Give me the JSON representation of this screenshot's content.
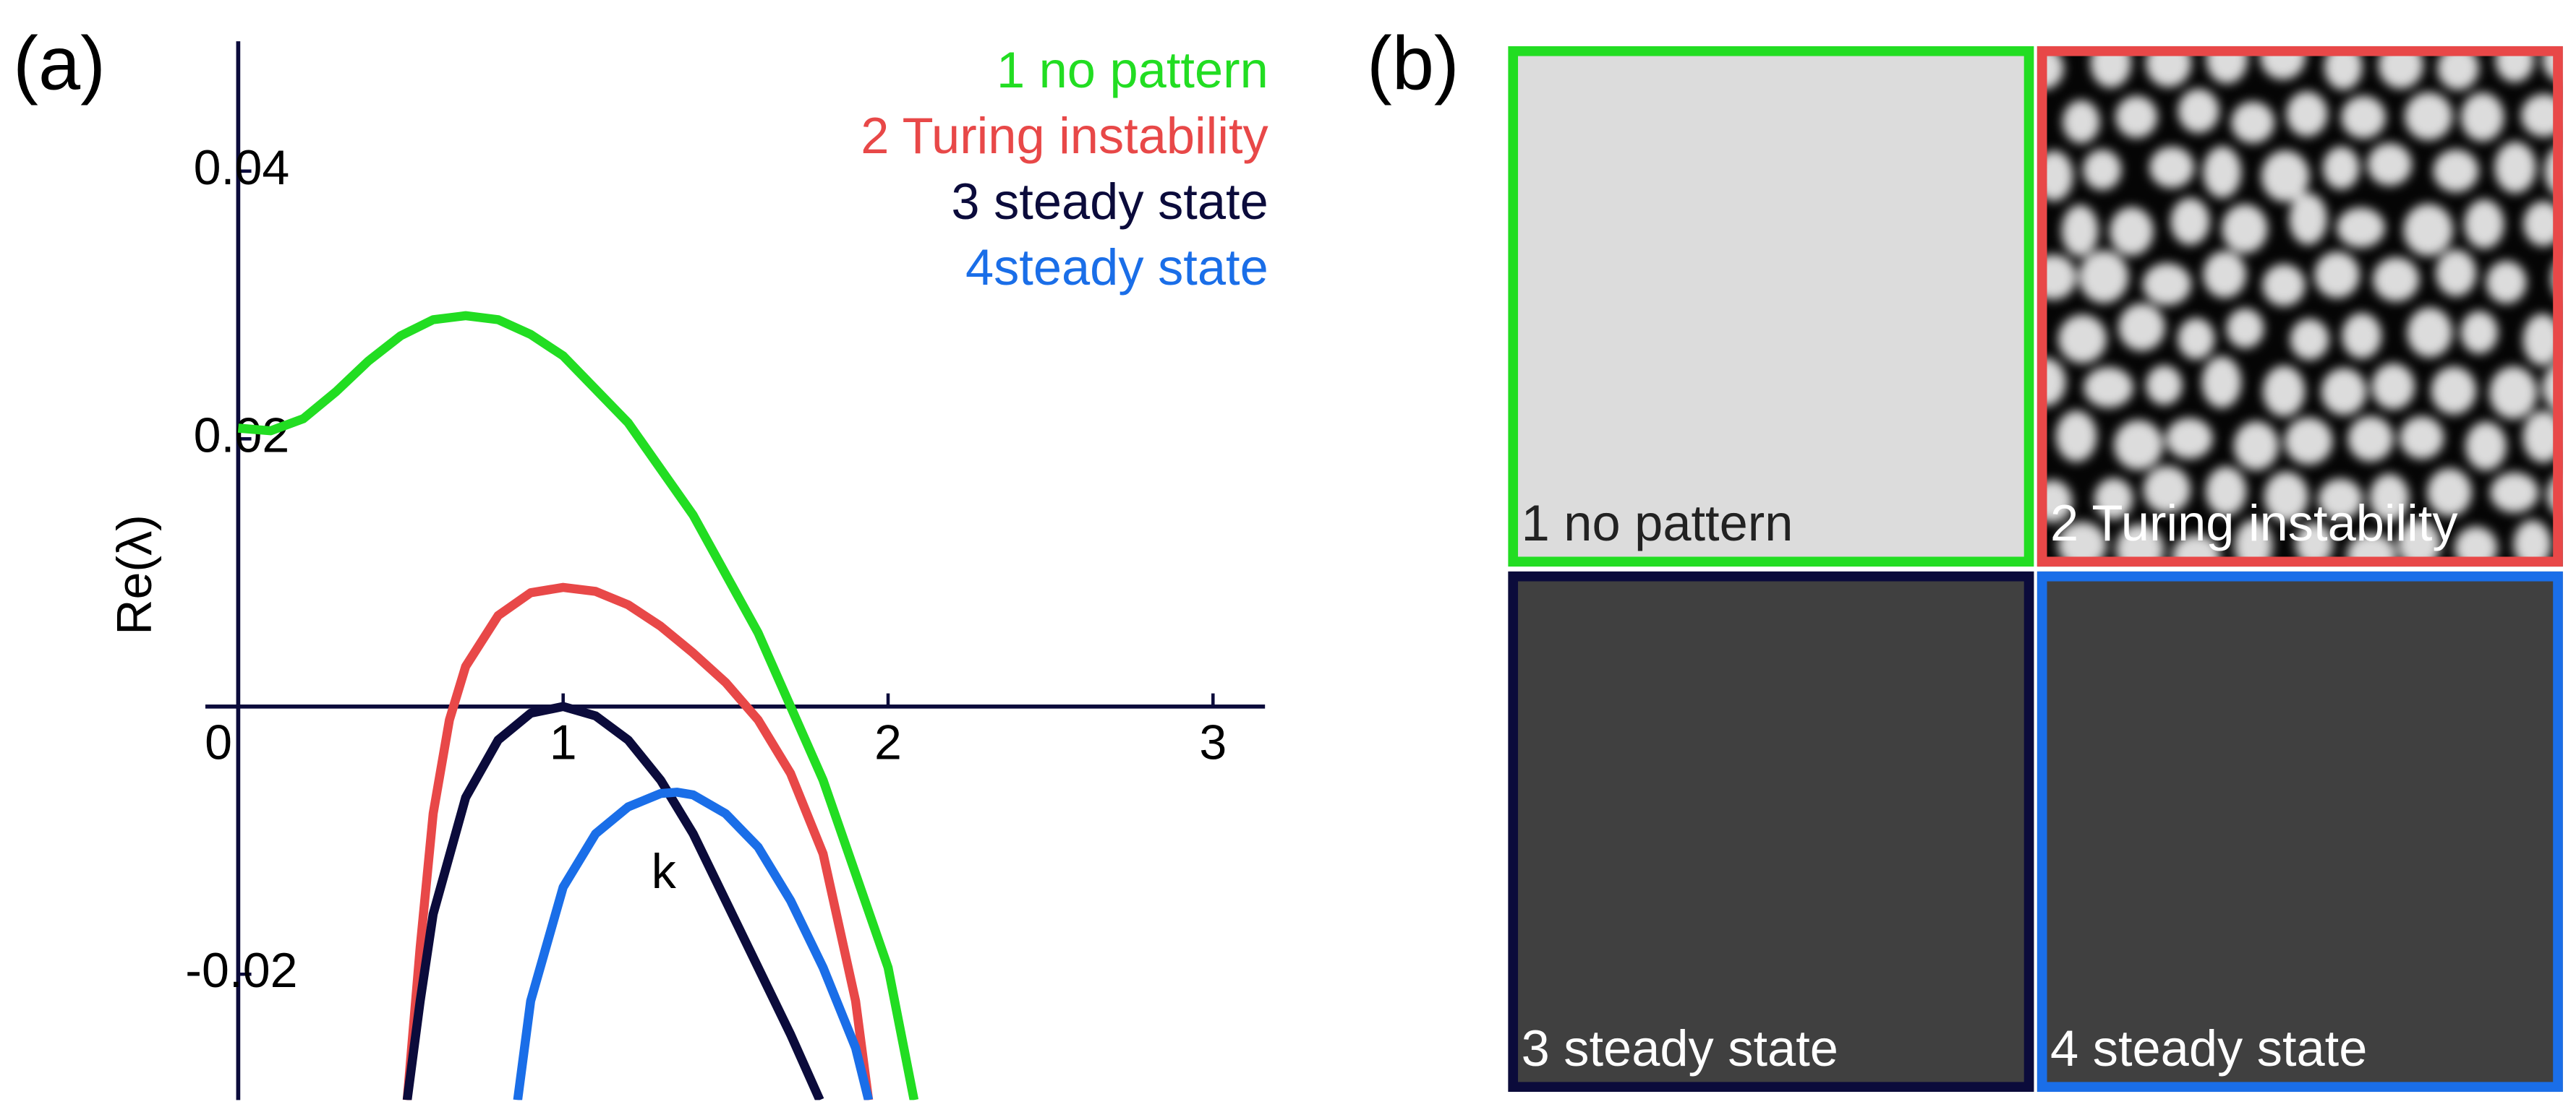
{
  "chart_data": {
    "type": "line",
    "x_label": "k",
    "y_label": "Re(λ)",
    "xlim": [
      0,
      3.16
    ],
    "ylim": [
      -0.0294,
      0.0497
    ],
    "xticks": [
      0,
      1,
      2,
      3
    ],
    "yticks": [
      -0.02,
      0.02,
      0.04
    ],
    "series": [
      {
        "name": "1 no pattern",
        "color": "#22dd22",
        "x": [
          0,
          0.1,
          0.2,
          0.3,
          0.4,
          0.5,
          0.6,
          0.7,
          0.8,
          0.9,
          1.0,
          1.2,
          1.4,
          1.6,
          1.8,
          2.0,
          2.08
        ],
        "values": [
          0.0208,
          0.0206,
          0.0215,
          0.0235,
          0.0258,
          0.0277,
          0.0289,
          0.0292,
          0.0289,
          0.0278,
          0.0262,
          0.0212,
          0.0143,
          0.0055,
          -0.0055,
          -0.0195,
          -0.0294
        ]
      },
      {
        "name": "2 Turing instability",
        "color": "#e84848",
        "x": [
          0.52,
          0.56,
          0.6,
          0.65,
          0.7,
          0.8,
          0.9,
          1.0,
          1.1,
          1.2,
          1.3,
          1.4,
          1.5,
          1.6,
          1.7,
          1.8,
          1.9,
          1.94
        ],
        "values": [
          -0.0294,
          -0.018,
          -0.008,
          -0.001,
          0.003,
          0.0068,
          0.0085,
          0.0089,
          0.0086,
          0.0076,
          0.006,
          0.004,
          0.0018,
          -0.001,
          -0.005,
          -0.011,
          -0.022,
          -0.0294
        ]
      },
      {
        "name": "3 steady state",
        "color": "#0b0b3b",
        "x": [
          0.52,
          0.56,
          0.6,
          0.7,
          0.8,
          0.9,
          1.0,
          1.1,
          1.2,
          1.3,
          1.4,
          1.5,
          1.6,
          1.7,
          1.79
        ],
        "values": [
          -0.0294,
          -0.022,
          -0.0155,
          -0.0068,
          -0.0025,
          -0.0005,
          0,
          -0.0007,
          -0.0025,
          -0.0055,
          -0.0095,
          -0.0145,
          -0.0195,
          -0.0245,
          -0.0294
        ]
      },
      {
        "name": "4steady state",
        "color": "#1a6ee8",
        "x": [
          0.86,
          0.9,
          1.0,
          1.1,
          1.2,
          1.3,
          1.35,
          1.4,
          1.5,
          1.6,
          1.7,
          1.8,
          1.9,
          1.94
        ],
        "values": [
          -0.0294,
          -0.022,
          -0.0135,
          -0.0095,
          -0.0075,
          -0.0065,
          -0.0064,
          -0.0066,
          -0.008,
          -0.0105,
          -0.0145,
          -0.0195,
          -0.0255,
          -0.0294
        ]
      }
    ]
  },
  "panel_labels": [
    "(a)",
    "(b)"
  ],
  "pattern_panels": [
    {
      "label": "1 no pattern",
      "border": "#22dd22",
      "pattern": "uniform-light"
    },
    {
      "label": "2 Turing instability",
      "border": "#e84848",
      "pattern": "spots"
    },
    {
      "label": "3 steady state",
      "border": "#0b0b3b",
      "pattern": "uniform-dark"
    },
    {
      "label": "4 steady state",
      "border": "#1a6ee8",
      "pattern": "uniform-dark"
    }
  ]
}
